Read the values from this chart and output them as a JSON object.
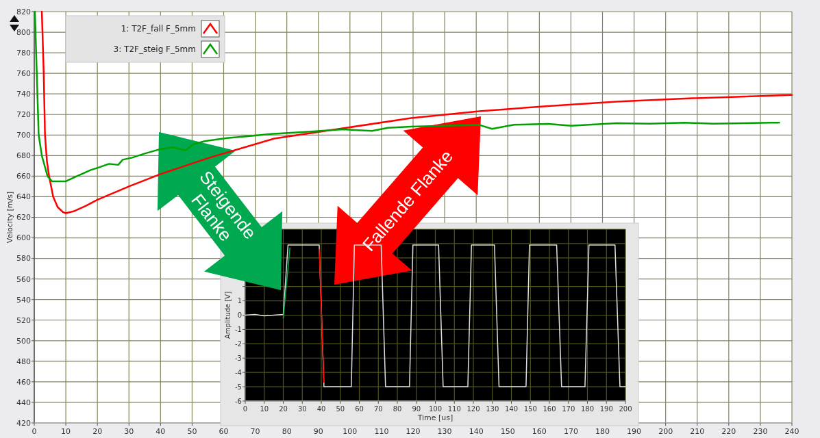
{
  "chart_data": [
    {
      "type": "line",
      "ylabel": "Velocity [m/s]",
      "xlim": [
        0,
        240
      ],
      "xticks": [
        0,
        10,
        20,
        30,
        40,
        50,
        60,
        70,
        80,
        90,
        100,
        110,
        120,
        130,
        140,
        150,
        160,
        170,
        180,
        190,
        200,
        210,
        220,
        230,
        240
      ],
      "ylim": [
        420,
        820
      ],
      "yticks": [
        420,
        440,
        460,
        480,
        500,
        520,
        540,
        560,
        580,
        600,
        620,
        640,
        660,
        680,
        700,
        720,
        740,
        760,
        780,
        800,
        820
      ],
      "grid": true,
      "legend": "top left",
      "annotations": [
        "Steigende Flanke",
        "Fallende Flanke"
      ],
      "series": [
        {
          "name": "1: T2F_fall F_5mm",
          "color": "#ff0000",
          "x": [
            2.4,
            3,
            3.4,
            4,
            4.7,
            6,
            7.4,
            9.1,
            10,
            12.7,
            16.3,
            20,
            30,
            40,
            55.5,
            76,
            97.7,
            119.4,
            141,
            162.8,
            184.5,
            206,
            240
          ],
          "values": [
            820,
            760,
            700,
            675,
            660,
            640,
            630,
            625,
            624,
            626,
            631,
            637,
            650,
            662,
            678,
            696.5,
            706.5,
            716.5,
            723.2,
            728.2,
            732.5,
            735.5,
            739
          ]
        },
        {
          "name": "3: T2F_steig F_5mm",
          "color": "#00a000",
          "x": [
            0.2,
            1.4,
            2.4,
            4.2,
            5.6,
            8.5,
            10,
            12.8,
            15,
            17.9,
            20,
            23.7,
            26.6,
            28,
            31,
            35,
            39.6,
            43.9,
            47.9,
            50.4,
            54,
            61,
            68.4,
            75,
            86,
            97.7,
            107,
            112,
            119.4,
            130,
            141,
            145,
            152,
            162.8,
            170,
            184.5,
            195,
            206,
            215,
            225,
            233.2,
            236
          ],
          "values": [
            820,
            700,
            680,
            660,
            655,
            655,
            655,
            659,
            662,
            666,
            668,
            672,
            671,
            676,
            678,
            682,
            686,
            688,
            685,
            691,
            694,
            697,
            699,
            701,
            703,
            705.5,
            704,
            707,
            708.2,
            709,
            709.8,
            706,
            710,
            710.8,
            709,
            711.5,
            711,
            712,
            711,
            711.5,
            712,
            712
          ]
        }
      ]
    },
    {
      "type": "line",
      "xlabel": "Time [us]",
      "ylabel": "Amplitude [V]",
      "xlim": [
        0,
        200
      ],
      "xticks": [
        0,
        10,
        20,
        30,
        40,
        50,
        60,
        70,
        80,
        90,
        100,
        110,
        120,
        130,
        140,
        150,
        160,
        170,
        180,
        190,
        200
      ],
      "ylim": [
        -6,
        6
      ],
      "yticks": [
        -6,
        -5,
        -4,
        -3,
        -2,
        -1,
        0,
        1,
        {
          "value": 2,
          "label": null
        },
        {
          "value": 3,
          "label": null
        },
        {
          "value": 4,
          "label": null
        },
        {
          "value": 5,
          "label": null
        },
        {
          "value": 6,
          "label": null
        }
      ],
      "grid": true,
      "series": [
        {
          "color": "#e0e0e0",
          "x": [
            0,
            5,
            10,
            15,
            20,
            22.5,
            38.9,
            41.4,
            55.8,
            57.4,
            71.5,
            73.8,
            86.4,
            88.2,
            101.7,
            104.1,
            117.1,
            119,
            131.1,
            133.5,
            147.7,
            149.5,
            163.8,
            166.4,
            178.7,
            180.8,
            194.5,
            197.1,
            200
          ],
          "values": [
            0,
            0.05,
            -0.05,
            0,
            0.05,
            4.9,
            4.9,
            -5,
            -5,
            4.9,
            4.9,
            -5,
            -5,
            4.9,
            4.9,
            -5,
            -5,
            4.9,
            4.9,
            -5,
            -5,
            4.9,
            4.9,
            -5,
            -5,
            4.9,
            4.9,
            -5,
            -5
          ]
        },
        {
          "color": "#00b050",
          "x": [
            20,
            23.5
          ],
          "values": [
            -0.2,
            4.7
          ]
        },
        {
          "color": "#ff0000",
          "x": [
            38.9,
            41.4
          ],
          "values": [
            4.6,
            -4.7
          ]
        }
      ]
    }
  ]
}
